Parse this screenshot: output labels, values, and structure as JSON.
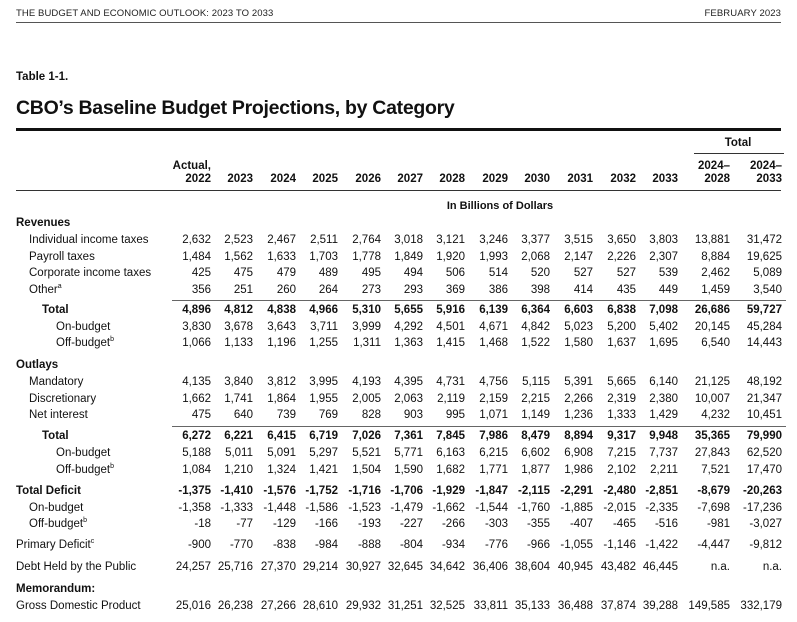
{
  "header": {
    "left": "THE BUDGET AND ECONOMIC OUTLOOK: 2023 TO 2033",
    "right": "FEBRUARY 2023"
  },
  "table_label": "Table 1-1.",
  "title": "CBO’s Baseline Budget Projections, by Category",
  "total_group": "Total",
  "columns": [
    {
      "line1": "Actual,",
      "line2": "2022"
    },
    {
      "line1": "",
      "line2": "2023"
    },
    {
      "line1": "",
      "line2": "2024"
    },
    {
      "line1": "",
      "line2": "2025"
    },
    {
      "line1": "",
      "line2": "2026"
    },
    {
      "line1": "",
      "line2": "2027"
    },
    {
      "line1": "",
      "line2": "2028"
    },
    {
      "line1": "",
      "line2": "2029"
    },
    {
      "line1": "",
      "line2": "2030"
    },
    {
      "line1": "",
      "line2": "2031"
    },
    {
      "line1": "",
      "line2": "2032"
    },
    {
      "line1": "",
      "line2": "2033"
    },
    {
      "line1": "2024–",
      "line2": "2028"
    },
    {
      "line1": "2024–",
      "line2": "2033"
    }
  ],
  "unit_label": "In Billions of Dollars",
  "rows": [
    {
      "label": "Revenues",
      "sup": "",
      "style": "section",
      "values": []
    },
    {
      "label": "Individual income taxes",
      "sup": "",
      "style": "indent1",
      "values": [
        "2,632",
        "2,523",
        "2,467",
        "2,511",
        "2,764",
        "3,018",
        "3,121",
        "3,246",
        "3,377",
        "3,515",
        "3,650",
        "3,803",
        "13,881",
        "31,472"
      ]
    },
    {
      "label": "Payroll taxes",
      "sup": "",
      "style": "indent1",
      "values": [
        "1,484",
        "1,562",
        "1,633",
        "1,703",
        "1,778",
        "1,849",
        "1,920",
        "1,993",
        "2,068",
        "2,147",
        "2,226",
        "2,307",
        "8,884",
        "19,625"
      ]
    },
    {
      "label": "Corporate income taxes",
      "sup": "",
      "style": "indent1",
      "values": [
        "425",
        "475",
        "479",
        "489",
        "495",
        "494",
        "506",
        "514",
        "520",
        "527",
        "527",
        "539",
        "2,462",
        "5,089"
      ]
    },
    {
      "label": "Other",
      "sup": "a",
      "style": "indent1",
      "values": [
        "356",
        "251",
        "260",
        "264",
        "273",
        "293",
        "369",
        "386",
        "398",
        "414",
        "435",
        "449",
        "1,459",
        "3,540"
      ]
    },
    {
      "label": "Total",
      "sup": "",
      "style": "total",
      "values": [
        "4,896",
        "4,812",
        "4,838",
        "4,966",
        "5,310",
        "5,655",
        "5,916",
        "6,139",
        "6,364",
        "6,603",
        "6,838",
        "7,098",
        "26,686",
        "59,727"
      ]
    },
    {
      "label": "On-budget",
      "sup": "",
      "style": "indent2",
      "values": [
        "3,830",
        "3,678",
        "3,643",
        "3,711",
        "3,999",
        "4,292",
        "4,501",
        "4,671",
        "4,842",
        "5,023",
        "5,200",
        "5,402",
        "20,145",
        "45,284"
      ]
    },
    {
      "label": "Off-budget",
      "sup": "b",
      "style": "indent2",
      "values": [
        "1,066",
        "1,133",
        "1,196",
        "1,255",
        "1,311",
        "1,363",
        "1,415",
        "1,468",
        "1,522",
        "1,580",
        "1,637",
        "1,695",
        "6,540",
        "14,443"
      ]
    },
    {
      "label": "Outlays",
      "sup": "",
      "style": "section",
      "values": []
    },
    {
      "label": "Mandatory",
      "sup": "",
      "style": "indent1",
      "values": [
        "4,135",
        "3,840",
        "3,812",
        "3,995",
        "4,193",
        "4,395",
        "4,731",
        "4,756",
        "5,115",
        "5,391",
        "5,665",
        "6,140",
        "21,125",
        "48,192"
      ]
    },
    {
      "label": "Discretionary",
      "sup": "",
      "style": "indent1",
      "values": [
        "1,662",
        "1,741",
        "1,864",
        "1,955",
        "2,005",
        "2,063",
        "2,119",
        "2,159",
        "2,215",
        "2,266",
        "2,319",
        "2,380",
        "10,007",
        "21,347"
      ]
    },
    {
      "label": "Net interest",
      "sup": "",
      "style": "indent1",
      "values": [
        "475",
        "640",
        "739",
        "769",
        "828",
        "903",
        "995",
        "1,071",
        "1,149",
        "1,236",
        "1,333",
        "1,429",
        "4,232",
        "10,451"
      ]
    },
    {
      "label": "Total",
      "sup": "",
      "style": "total",
      "values": [
        "6,272",
        "6,221",
        "6,415",
        "6,719",
        "7,026",
        "7,361",
        "7,845",
        "7,986",
        "8,479",
        "8,894",
        "9,317",
        "9,948",
        "35,365",
        "79,990"
      ]
    },
    {
      "label": "On-budget",
      "sup": "",
      "style": "indent2",
      "values": [
        "5,188",
        "5,011",
        "5,091",
        "5,297",
        "5,521",
        "5,771",
        "6,163",
        "6,215",
        "6,602",
        "6,908",
        "7,215",
        "7,737",
        "27,843",
        "62,520"
      ]
    },
    {
      "label": "Off-budget",
      "sup": "b",
      "style": "indent2",
      "values": [
        "1,084",
        "1,210",
        "1,324",
        "1,421",
        "1,504",
        "1,590",
        "1,682",
        "1,771",
        "1,877",
        "1,986",
        "2,102",
        "2,211",
        "7,521",
        "17,470"
      ]
    },
    {
      "label": "Total Deficit",
      "sup": "",
      "style": "bold",
      "values": [
        "-1,375",
        "-1,410",
        "-1,576",
        "-1,752",
        "-1,716",
        "-1,706",
        "-1,929",
        "-1,847",
        "-2,115",
        "-2,291",
        "-2,480",
        "-2,851",
        "-8,679",
        "-20,263"
      ]
    },
    {
      "label": "On-budget",
      "sup": "",
      "style": "indent1",
      "values": [
        "-1,358",
        "-1,333",
        "-1,448",
        "-1,586",
        "-1,523",
        "-1,479",
        "-1,662",
        "-1,544",
        "-1,760",
        "-1,885",
        "-2,015",
        "-2,335",
        "-7,698",
        "-17,236"
      ]
    },
    {
      "label": "Off-budget",
      "sup": "b",
      "style": "indent1",
      "values": [
        "-18",
        "-77",
        "-129",
        "-166",
        "-193",
        "-227",
        "-266",
        "-303",
        "-355",
        "-407",
        "-465",
        "-516",
        "-981",
        "-3,027"
      ]
    },
    {
      "label": "Primary Deficit",
      "sup": "c",
      "style": "plain",
      "values": [
        "-900",
        "-770",
        "-838",
        "-984",
        "-888",
        "-804",
        "-934",
        "-776",
        "-966",
        "-1,055",
        "-1,146",
        "-1,422",
        "-4,447",
        "-9,812"
      ]
    },
    {
      "label": "Debt Held by the Public",
      "sup": "",
      "style": "plain",
      "values": [
        "24,257",
        "25,716",
        "27,370",
        "29,214",
        "30,927",
        "32,645",
        "34,642",
        "36,406",
        "38,604",
        "40,945",
        "43,482",
        "46,445",
        "n.a.",
        "n.a."
      ]
    },
    {
      "label": "Memorandum:",
      "sup": "",
      "style": "section",
      "values": []
    },
    {
      "label": "Gross Domestic Product",
      "sup": "",
      "style": "plain",
      "values": [
        "25,016",
        "26,238",
        "27,266",
        "28,610",
        "29,932",
        "31,251",
        "32,525",
        "33,811",
        "35,133",
        "36,488",
        "37,874",
        "39,288",
        "149,585",
        "332,179"
      ]
    }
  ]
}
